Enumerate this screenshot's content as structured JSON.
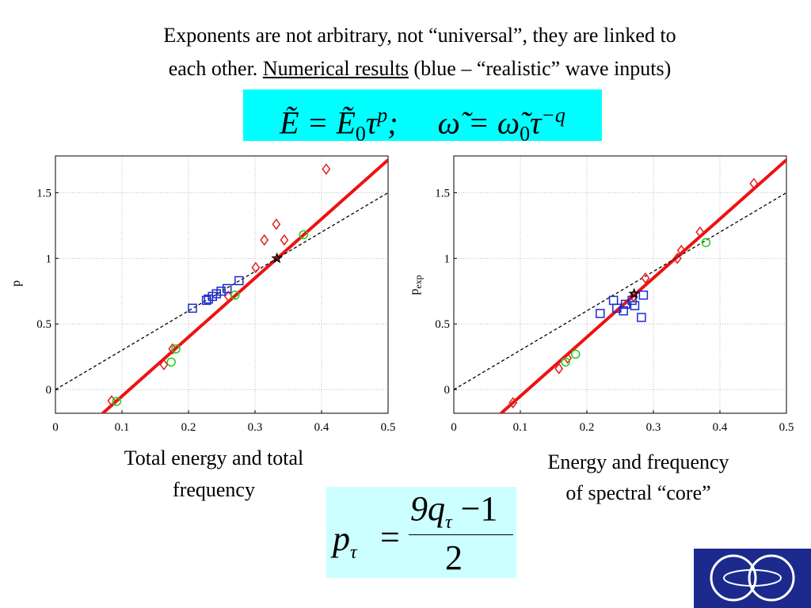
{
  "slide": {
    "title_line1": "Exponents are not arbitrary, not “universal”, they are linked to",
    "title_line2_a": "each other.",
    "title_line2_link": "Numerical results",
    "title_line2_b": "(blue – “realistic” wave inputs)",
    "equation1": [
      {
        "text": "Ẽ = Ẽ"
      },
      {
        "sub": "0"
      },
      {
        "text": "τ"
      },
      {
        "sup": "p"
      },
      {
        "text": ";"
      },
      {
        "text": "ω̃ = ω̃"
      },
      {
        "sub": "0"
      },
      {
        "text": "τ"
      },
      {
        "sup": "−q"
      }
    ],
    "equation2": {
      "lhs": "p",
      "lhs_sub": "τ",
      "eq": "=",
      "num": "9q",
      "num_sub": "τ",
      "num_rest": "−1",
      "den": "2"
    }
  },
  "chart_data": [
    {
      "type": "scatter",
      "ylabel": "p",
      "caption": [
        "Total energy and total",
        "frequency"
      ],
      "xlim": [
        0,
        0.5
      ],
      "ylim": [
        -0.18,
        1.78
      ],
      "xticks": [
        0,
        0.1,
        0.2,
        0.3,
        0.4,
        0.5
      ],
      "yticks": [
        0,
        0.5,
        1,
        1.5
      ],
      "grid": true,
      "series": [
        {
          "line_style": "solid",
          "color": "#ee1111",
          "x": [
            0.06,
            0.5
          ],
          "values": [
            -0.23,
            1.75
          ]
        },
        {
          "line_style": "dashed",
          "color": "#000000",
          "x": [
            0,
            0.5
          ],
          "values": [
            0,
            1.5
          ]
        },
        {
          "marker": "diamond",
          "color": "#e02020",
          "x": [
            0.0845,
            0.163,
            0.176,
            0.26,
            0.301,
            0.314,
            0.332,
            0.344,
            0.407
          ],
          "values": [
            -0.085,
            0.19,
            0.31,
            0.71,
            0.93,
            1.14,
            1.26,
            1.14,
            1.68
          ]
        },
        {
          "marker": "circle",
          "color": "#22cc22",
          "x": [
            0.092,
            0.174,
            0.181,
            0.27,
            0.373
          ],
          "values": [
            -0.09,
            0.21,
            0.31,
            0.72,
            1.18
          ]
        },
        {
          "marker": "square",
          "color": "#1a2ad0",
          "x": [
            0.206,
            0.227,
            0.23,
            0.236,
            0.242,
            0.249,
            0.258,
            0.276
          ],
          "values": [
            0.62,
            0.68,
            0.69,
            0.71,
            0.73,
            0.75,
            0.77,
            0.83
          ]
        },
        {
          "marker": "star",
          "color": "#000000",
          "x": [
            0.333
          ],
          "values": [
            1.0
          ]
        }
      ]
    },
    {
      "type": "scatter",
      "ylabel": "p",
      "ylabel_sub": "exp",
      "caption": [
        "Energy and frequency",
        "of spectral “core”"
      ],
      "xlim": [
        0,
        0.5
      ],
      "ylim": [
        -0.18,
        1.78
      ],
      "xticks": [
        0,
        0.1,
        0.2,
        0.3,
        0.4,
        0.5
      ],
      "yticks": [
        0,
        0.5,
        1,
        1.5
      ],
      "grid": true,
      "series": [
        {
          "line_style": "solid",
          "color": "#ee1111",
          "x": [
            0.06,
            0.5
          ],
          "values": [
            -0.23,
            1.75
          ]
        },
        {
          "line_style": "dashed",
          "color": "#000000",
          "x": [
            0,
            0.5
          ],
          "values": [
            0,
            1.5
          ]
        },
        {
          "marker": "diamond",
          "color": "#e02020",
          "x": [
            0.089,
            0.158,
            0.171,
            0.27,
            0.288,
            0.336,
            0.342,
            0.37,
            0.451
          ],
          "values": [
            -0.1,
            0.16,
            0.24,
            0.71,
            0.85,
            1.0,
            1.06,
            1.2,
            1.57
          ]
        },
        {
          "marker": "circle",
          "color": "#22cc22",
          "x": [
            0.168,
            0.183,
            0.379
          ],
          "values": [
            0.21,
            0.27,
            1.12
          ]
        },
        {
          "marker": "square",
          "color": "#1a2ad0",
          "x": [
            0.22,
            0.24,
            0.245,
            0.255,
            0.258,
            0.268,
            0.272,
            0.285,
            0.282
          ],
          "values": [
            0.58,
            0.68,
            0.62,
            0.6,
            0.65,
            0.68,
            0.64,
            0.72,
            0.55
          ]
        },
        {
          "marker": "star",
          "color": "#000000",
          "x": [
            0.271
          ],
          "values": [
            0.73
          ]
        }
      ]
    }
  ]
}
